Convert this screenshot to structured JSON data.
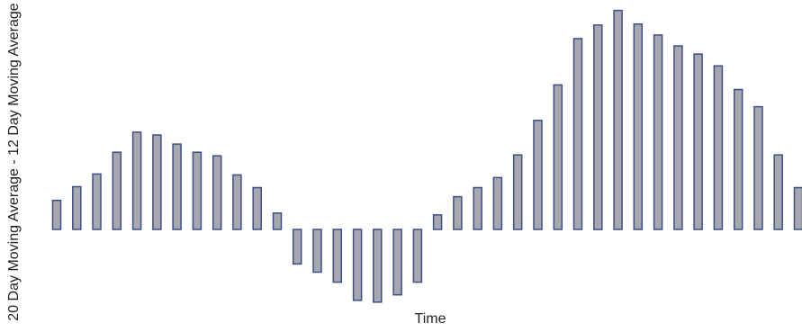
{
  "chart_data": {
    "type": "bar",
    "xlabel": "Time",
    "ylabel": "20 Day Moving Average - 12 Day Moving Average",
    "colors": {
      "bar_fill": "#a7a7af",
      "bar_stroke": "#3b4f86"
    },
    "values": [
      0.32,
      0.47,
      0.61,
      0.85,
      1.07,
      1.04,
      0.94,
      0.85,
      0.81,
      0.6,
      0.46,
      0.18,
      -0.38,
      -0.47,
      -0.58,
      -0.78,
      -0.8,
      -0.72,
      -0.58,
      0.16,
      0.36,
      0.46,
      0.57,
      0.82,
      1.2,
      1.59,
      2.1,
      2.25,
      2.41,
      2.26,
      2.14,
      2.02,
      1.93,
      1.8,
      1.54,
      1.35,
      0.82,
      0.46
    ]
  }
}
